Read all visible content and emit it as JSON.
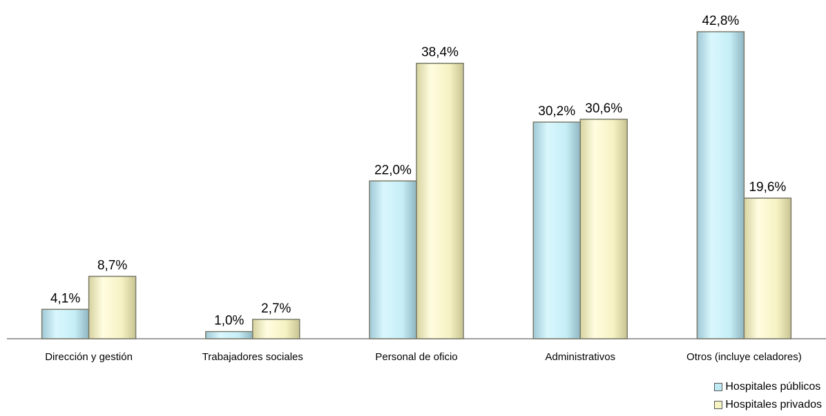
{
  "chart_data": {
    "type": "bar",
    "categories": [
      "Dirección y gestión",
      "Trabajadores sociales",
      "Personal de oficio",
      "Administrativos",
      "Otros (incluye celadores)"
    ],
    "series": [
      {
        "name": "Hospitales públicos",
        "values": [
          4.1,
          1.0,
          22.0,
          30.2,
          42.8
        ],
        "labels": [
          "4,1%",
          "1,0%",
          "22,0%",
          "30,2%",
          "42,8%"
        ],
        "color": "#bfeaf3"
      },
      {
        "name": "Hospitales privados",
        "values": [
          8.7,
          2.7,
          38.4,
          30.6,
          19.6
        ],
        "labels": [
          "8,7%",
          "2,7%",
          "38,4%",
          "30,6%",
          "19,6%"
        ],
        "color": "#f7f3c3"
      }
    ],
    "ylim": [
      0,
      45
    ],
    "grid": false,
    "legend_position": "bottom-right"
  }
}
